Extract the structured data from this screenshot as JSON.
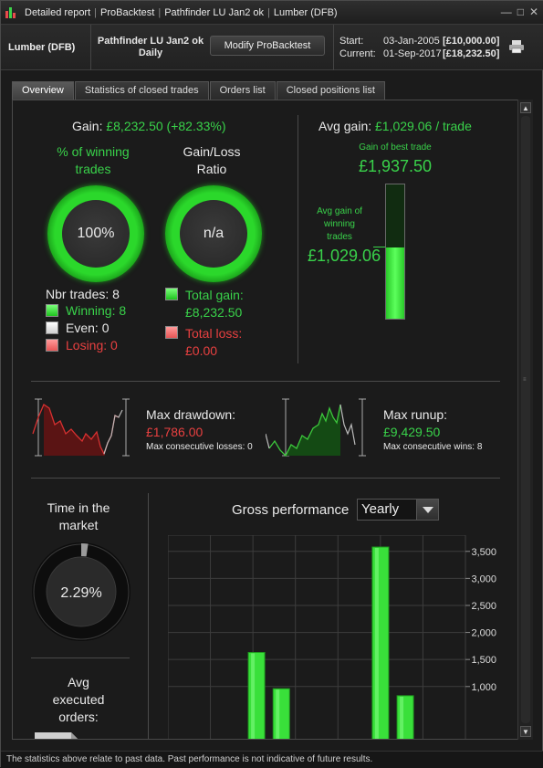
{
  "window": {
    "title_parts": [
      "Detailed report",
      "ProBacktest",
      "Pathfinder LU Jan2 ok",
      "Lumber (DFB)"
    ],
    "controls": [
      "—",
      "□",
      "✕"
    ]
  },
  "header": {
    "instrument": "Lumber (DFB)",
    "strategy_name": "Pathfinder LU Jan2 ok",
    "timeframe": "Daily",
    "modify_button": "Modify ProBacktest",
    "start_label": "Start:",
    "start_date": "03-Jan-2005",
    "start_amount": "[£10,000.00]",
    "current_label": "Current:",
    "current_date": "01-Sep-2017",
    "current_amount": "[£18,232.50]"
  },
  "tabs": [
    {
      "label": "Overview",
      "active": true
    },
    {
      "label": "Statistics of closed trades",
      "active": false
    },
    {
      "label": "Orders list",
      "active": false
    },
    {
      "label": "Closed positions list",
      "active": false
    }
  ],
  "gain": {
    "label": "Gain:",
    "value": "£8,232.50 (+82.33%)"
  },
  "winning": {
    "title_line1": "% of winning",
    "title_line2": "trades",
    "value": "100%"
  },
  "ratio": {
    "title_line1": "Gain/Loss",
    "title_line2": "Ratio",
    "value": "n/a"
  },
  "trades": {
    "nbr_label": "Nbr trades: 8",
    "winning": "Winning: 8",
    "even": "Even: 0",
    "losing": "Losing: 0"
  },
  "totals": {
    "gain_label": "Total gain:",
    "gain_value": "£8,232.50",
    "loss_label": "Total loss:",
    "loss_value": "£0.00"
  },
  "avg": {
    "label": "Avg gain:",
    "value": "£1,029.06 / trade",
    "best_label": "Gain of best trade",
    "best_value": "£1,937.50",
    "avg_win_line1": "Avg gain of",
    "avg_win_line2": "winning",
    "avg_win_line3": "trades",
    "avg_win_value": "£1,029.06",
    "fill_fraction": 0.53
  },
  "drawdown": {
    "label": "Max drawdown:",
    "value": "£1,786.00",
    "sub": "Max consecutive losses: 0"
  },
  "runup": {
    "label": "Max runup:",
    "value": "£9,429.50",
    "sub": "Max consecutive wins: 8"
  },
  "market": {
    "title_line1": "Time in the",
    "title_line2": "market",
    "value": "2.29%",
    "fraction": 0.0229
  },
  "orders": {
    "line1": "Avg",
    "line2": "executed",
    "line3": "orders:"
  },
  "perf": {
    "title": "Gross performance",
    "period": "Yearly"
  },
  "chart_data": {
    "type": "bar",
    "title": "Gross performance",
    "ylim": [
      0,
      3800
    ],
    "yticks": [
      1000,
      1500,
      2000,
      2500,
      3000,
      3500
    ],
    "ytick_labels": [
      "1,000",
      "1,500",
      "2,000",
      "2,500",
      "3,000",
      "3,500"
    ],
    "grid": true,
    "series": [
      {
        "values": [
          0,
          0,
          0,
          1630,
          960,
          0,
          0,
          0,
          3580,
          830,
          0,
          0
        ]
      }
    ],
    "bar_color": "#39e03a"
  },
  "footer": "The statistics above relate to past data. Past performance is not indicative of future results.",
  "colors": {
    "green": "#39d24a",
    "red": "#e84040",
    "accent_bar": "#4cf04c"
  }
}
